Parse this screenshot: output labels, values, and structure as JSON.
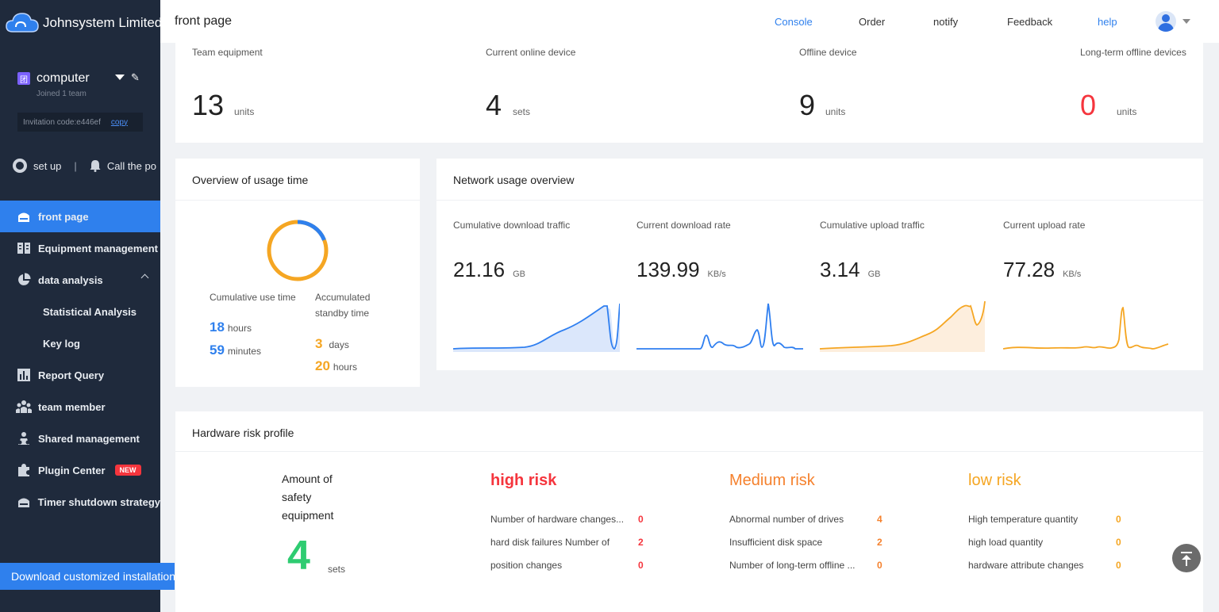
{
  "sidebar": {
    "brand": "Johnsystem Limited",
    "team": {
      "badge": "团",
      "name": "computer",
      "sub": "Joined 1 team",
      "invitation": "Invitation code:e446ef",
      "copy_label": "copy"
    },
    "quick": {
      "setup_label": "set up",
      "separator": "|",
      "call_label": "Call the po"
    },
    "menu": [
      {
        "label": "front page",
        "icon": "home-icon"
      },
      {
        "label": "Equipment management",
        "icon": "device-icon"
      },
      {
        "label": "data analysis",
        "icon": "pie-chart-icon"
      },
      {
        "label": "Statistical Analysis"
      },
      {
        "label": "Key log"
      },
      {
        "label": "Report Query",
        "icon": "bar-chart-icon"
      },
      {
        "label": "team member",
        "icon": "users-icon"
      },
      {
        "label": "Shared management",
        "icon": "share-icon"
      },
      {
        "label": "Plugin Center",
        "icon": "puzzle-icon",
        "badge": "NEW"
      },
      {
        "label": "Timer shutdown strategy",
        "icon": "timer-icon"
      }
    ],
    "download_label": "Download customized installation"
  },
  "header": {
    "title": "front page",
    "nav": {
      "console": "Console",
      "order": "Order",
      "notify": "notify",
      "feedback": "Feedback",
      "help": "help"
    }
  },
  "stats": [
    {
      "label": "Team equipment",
      "value": "13",
      "unit": "units"
    },
    {
      "label": "Current online device",
      "value": "4",
      "unit": "sets"
    },
    {
      "label": "Offline device",
      "value": "9",
      "unit": "units"
    },
    {
      "label": "Long-term offline devices",
      "value": "0",
      "unit": "units"
    }
  ],
  "usage": {
    "title": "Overview of usage time",
    "cumulative_label": "Cumulative use time",
    "standby_label_1": "Accumulated",
    "standby_label_2": "standby time",
    "use_hours": "18",
    "use_hours_unit": "hours",
    "use_minutes": "59",
    "use_minutes_unit": "minutes",
    "standby_days": "3",
    "standby_days_unit": "days",
    "standby_hours": "20",
    "standby_hours_unit": "hours",
    "use_fraction": 0.19
  },
  "network": {
    "title": "Network usage overview",
    "metrics": [
      {
        "label": "Cumulative download traffic",
        "value": "21.16",
        "unit": "GB",
        "color": "#2f7ff0",
        "fill": "#dbe7fb"
      },
      {
        "label": "Current download rate",
        "value": "139.99",
        "unit": "KB/s",
        "color": "#2f7ff0",
        "fill": "none"
      },
      {
        "label": "Cumulative upload traffic",
        "value": "3.14",
        "unit": "GB",
        "color": "#f5a623",
        "fill": "#fdeedd"
      },
      {
        "label": "Current upload rate",
        "value": "77.28",
        "unit": "KB/s",
        "color": "#f5a623",
        "fill": "none"
      }
    ]
  },
  "risk": {
    "title": "Hardware risk profile",
    "safety_label": "Amount of safety equipment",
    "safety_value": "4",
    "safety_unit": "sets",
    "high": {
      "title": "high risk",
      "color": "#f5353d",
      "rows": [
        {
          "label": "Number of hardware changes...",
          "count": "0"
        },
        {
          "label": "hard disk failures Number of",
          "count": "2"
        },
        {
          "label": "position changes",
          "count": "0"
        }
      ]
    },
    "medium": {
      "title": "Medium risk",
      "color": "#f5812d",
      "rows": [
        {
          "label": "Abnormal number of drives",
          "count": "4"
        },
        {
          "label": "Insufficient disk space",
          "count": "2"
        },
        {
          "label": "Number of long-term offline ...",
          "count": "0"
        }
      ]
    },
    "low": {
      "title": "low risk",
      "color": "#f5a623",
      "rows": [
        {
          "label": "High temperature quantity",
          "count": "0"
        },
        {
          "label": "high load quantity",
          "count": "0"
        },
        {
          "label": "hardware attribute changes",
          "count": "0"
        }
      ]
    }
  }
}
